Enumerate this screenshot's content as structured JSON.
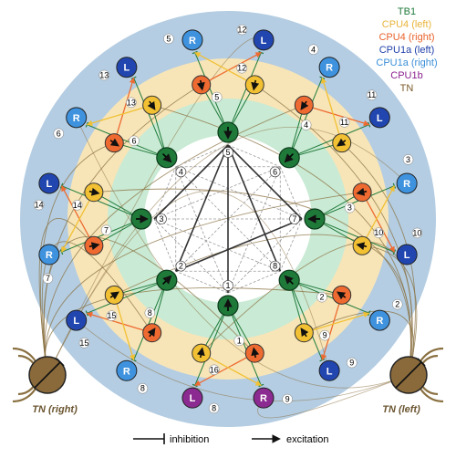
{
  "legend": {
    "items": [
      {
        "label": "TB1",
        "color": "#1f7a3a"
      },
      {
        "label": "CPU4 (left)",
        "color": "#e9b43a"
      },
      {
        "label": "CPU4 (right)",
        "color": "#e8622a"
      },
      {
        "label": "CPU1a (left)",
        "color": "#1e3fa8"
      },
      {
        "label": "CPU1a (right)",
        "color": "#3b8fd8"
      },
      {
        "label": "CPU1b",
        "color": "#8a1f8f"
      },
      {
        "label": "TN",
        "color": "#7a5a2a"
      }
    ]
  },
  "tn": {
    "right_label": "TN (right)",
    "left_label": "TN (left)"
  },
  "footer": {
    "inhibition_label": "inhibition",
    "excitation_label": "excitation"
  },
  "colors": {
    "ring_outer": "#b4cde2",
    "ring_mid": "#f7e5b8",
    "ring_inner": "#c9ead4",
    "tb1": "#1f7a3a",
    "cpu4_left": "#f2c033",
    "cpu4_right": "#ee6a30",
    "cpu1a_left": "#2146b0",
    "cpu1a_right": "#3f92dd",
    "cpu1b": "#8b2a90",
    "tn": "#8a7040"
  },
  "tb1_nodes": [
    {
      "n": "1"
    },
    {
      "n": "2"
    },
    {
      "n": "3"
    },
    {
      "n": "4"
    },
    {
      "n": "5"
    },
    {
      "n": "6"
    },
    {
      "n": "7"
    },
    {
      "n": "8"
    }
  ],
  "cpu4_nodes": [
    {
      "n": "1",
      "side": "right"
    },
    {
      "n": "16",
      "side": "left"
    },
    {
      "n": "8",
      "side": "right"
    },
    {
      "n": "15",
      "side": "left"
    },
    {
      "n": "7",
      "side": "right"
    },
    {
      "n": "14",
      "side": "left"
    },
    {
      "n": "6",
      "side": "right"
    },
    {
      "n": "13",
      "side": "left"
    },
    {
      "n": "5",
      "side": "right"
    },
    {
      "n": "12",
      "side": "left"
    },
    {
      "n": "4",
      "side": "right"
    },
    {
      "n": "11",
      "side": "left"
    },
    {
      "n": "3",
      "side": "right"
    },
    {
      "n": "10",
      "side": "left"
    },
    {
      "n": "2",
      "side": "right"
    },
    {
      "n": "9",
      "side": "left"
    }
  ],
  "cpu1_nodes": [
    {
      "letter": "R",
      "n": "9",
      "type": "cpu1b"
    },
    {
      "letter": "L",
      "n": "8",
      "type": "cpu1b"
    },
    {
      "letter": "R",
      "n": "8",
      "type": "right"
    },
    {
      "letter": "L",
      "n": "15",
      "type": "left"
    },
    {
      "letter": "R",
      "n": "7",
      "type": "right"
    },
    {
      "letter": "L",
      "n": "14",
      "type": "left"
    },
    {
      "letter": "R",
      "n": "6",
      "type": "right"
    },
    {
      "letter": "L",
      "n": "13",
      "type": "left"
    },
    {
      "letter": "R",
      "n": "5",
      "type": "right"
    },
    {
      "letter": "L",
      "n": "12",
      "type": "left"
    },
    {
      "letter": "R",
      "n": "4",
      "type": "right"
    },
    {
      "letter": "L",
      "n": "11",
      "type": "left"
    },
    {
      "letter": "R",
      "n": "3",
      "type": "right"
    },
    {
      "letter": "L",
      "n": "10",
      "type": "left"
    },
    {
      "letter": "R",
      "n": "2",
      "type": "right"
    },
    {
      "letter": "L",
      "n": "9",
      "type": "left"
    }
  ]
}
